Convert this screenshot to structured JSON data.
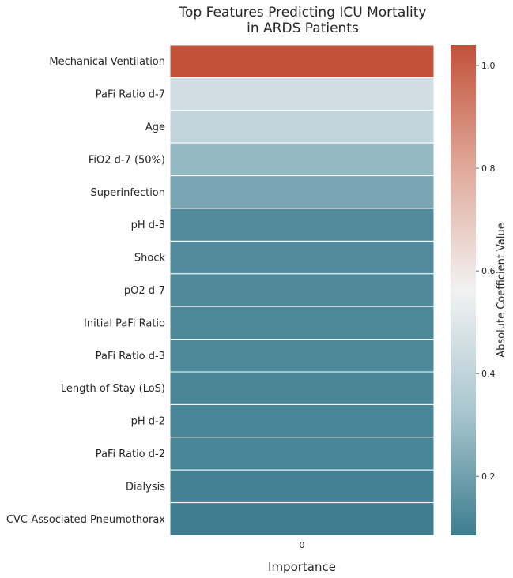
{
  "chart_data": {
    "type": "heatmap",
    "title_lines": [
      "Top Features Predicting ICU Mortality",
      "in ARDS Patients"
    ],
    "xlabel": "Importance",
    "x_tick_labels": [
      "0"
    ],
    "features": [
      "Mechanical Ventilation",
      "PaFi Ratio d-7",
      "Age",
      "FiO2 d-7 (50%)",
      "Superinfection",
      "pH d-3",
      "Shock",
      "pO2 d-7",
      "Initial PaFi Ratio",
      "PaFi Ratio d-3",
      "Length of Stay (LoS)",
      "pH d-2",
      "PaFi Ratio d-2",
      "Dialysis",
      "CVC-Associated Pneumothorax"
    ],
    "values": [
      1.04,
      0.45,
      0.4,
      0.28,
      0.22,
      0.13,
      0.13,
      0.125,
      0.12,
      0.12,
      0.115,
      0.11,
      0.11,
      0.1,
      0.085
    ],
    "colorbar": {
      "label": "Absolute Coefficient Value",
      "vmin": 0.085,
      "vmax": 1.04,
      "ticks": [
        0.2,
        0.4,
        0.6,
        0.8,
        1.0
      ],
      "tick_labels": [
        "0.2",
        "0.4",
        "0.6",
        "0.8",
        "1.0"
      ],
      "colors": [
        "#3d7d8f",
        "#a9c6cf",
        "#f2f2f2",
        "#e0a99a",
        "#c2513a"
      ]
    }
  }
}
